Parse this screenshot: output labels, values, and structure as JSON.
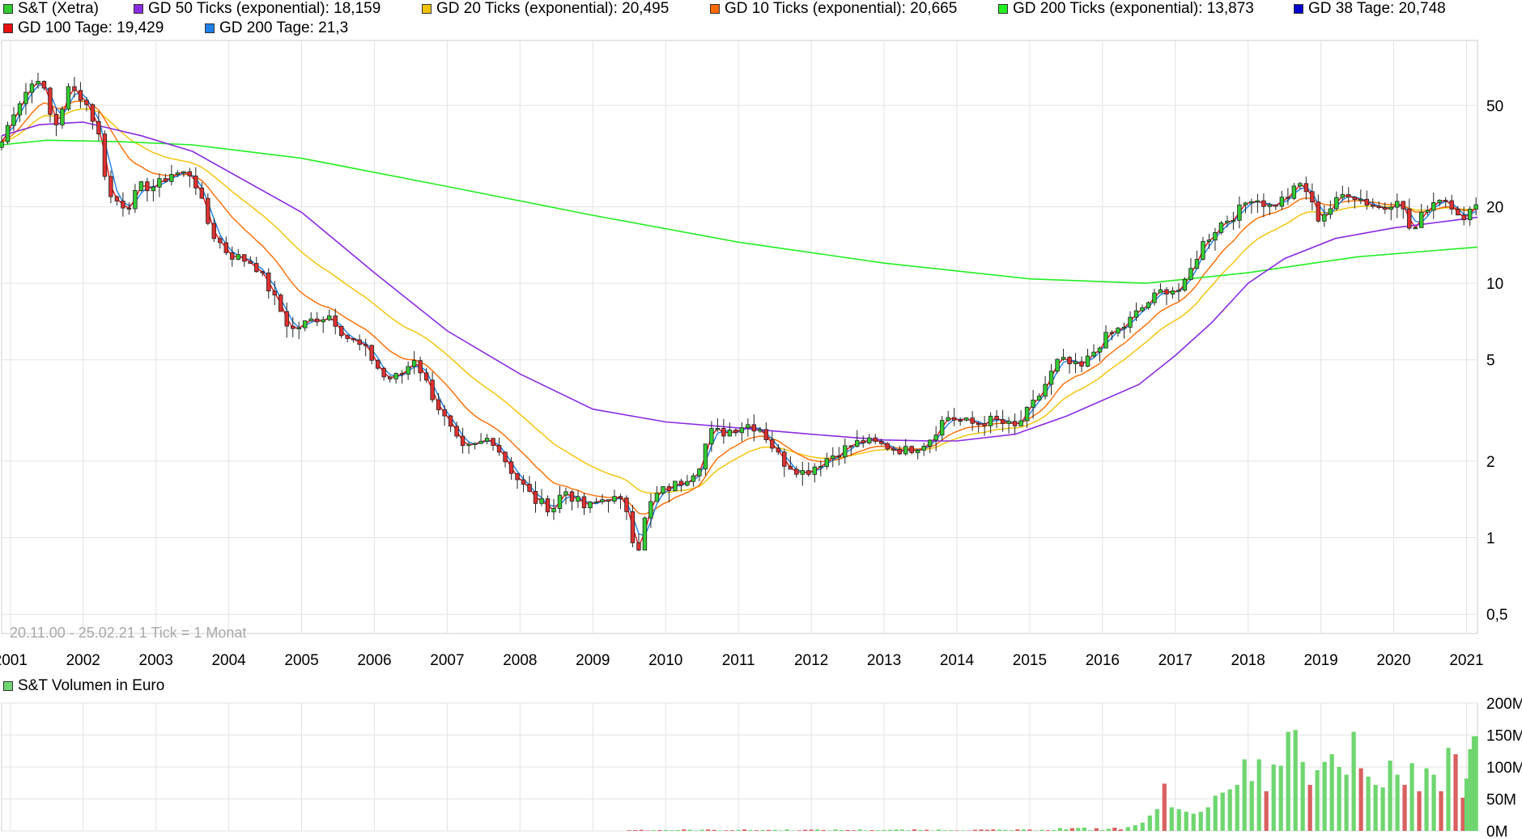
{
  "legend": [
    {
      "label": "S&T (Xetra)",
      "color": "#33cc33"
    },
    {
      "label": "GD 50 Ticks (exponential): 18,159",
      "color": "#8a2be2"
    },
    {
      "label": "GD 20 Ticks (exponential): 20,495",
      "color": "#f2c200"
    },
    {
      "label": "GD 10 Ticks (exponential): 20,665",
      "color": "#ff6a00"
    },
    {
      "label": "GD 200 Ticks (exponential): 13,873",
      "color": "#22ee22"
    },
    {
      "label": "GD 38 Tage: 20,748",
      "color": "#0000cc"
    },
    {
      "label": "GD 100 Tage: 19,429",
      "color": "#e81010"
    },
    {
      "label": "GD 200 Tage: 21,3",
      "color": "#1e7fe8"
    }
  ],
  "range_note": "20.11.00 - 25.02.21   1 Tick = 1 Monat",
  "volume_title": "S&T Volumen in Euro",
  "colors": {
    "up": "#33cc33",
    "down": "#e03030",
    "vol_up": "#6fd66f",
    "vol_down": "#d96060",
    "grid": "#e3e3e3"
  },
  "chart_data": [
    {
      "type": "candlestick",
      "title": "S&T (Xetra)",
      "interval": "monthly",
      "yscale": "log",
      "ylim": [
        0.42,
        90
      ],
      "y_ticks": [
        0.5,
        1,
        2,
        5,
        10,
        20,
        50
      ],
      "y_tick_labels": [
        "0,5",
        "1",
        "2",
        "5",
        "10",
        "20",
        "50"
      ],
      "x_range": [
        2000.88,
        2021.15
      ],
      "x_ticks": [
        2001,
        2002,
        2003,
        2004,
        2005,
        2006,
        2007,
        2008,
        2009,
        2010,
        2011,
        2012,
        2013,
        2014,
        2015,
        2016,
        2017,
        2018,
        2019,
        2020,
        2021
      ],
      "anchors_close": [
        [
          2000.88,
          36
        ],
        [
          2001.05,
          48
        ],
        [
          2001.2,
          56
        ],
        [
          2001.4,
          66
        ],
        [
          2001.6,
          40
        ],
        [
          2001.8,
          58
        ],
        [
          2002.0,
          54
        ],
        [
          2002.2,
          40
        ],
        [
          2002.35,
          22
        ],
        [
          2002.6,
          20
        ],
        [
          2002.8,
          24
        ],
        [
          2003.0,
          24
        ],
        [
          2003.2,
          27
        ],
        [
          2003.5,
          27
        ],
        [
          2003.75,
          16
        ],
        [
          2004.0,
          13
        ],
        [
          2004.35,
          12
        ],
        [
          2004.6,
          9
        ],
        [
          2004.85,
          6.5
        ],
        [
          2005.2,
          7.3
        ],
        [
          2005.4,
          7.5
        ],
        [
          2005.6,
          6.2
        ],
        [
          2005.9,
          5.4
        ],
        [
          2006.15,
          4.2
        ],
        [
          2006.35,
          4.3
        ],
        [
          2006.55,
          5.1
        ],
        [
          2006.8,
          3.6
        ],
        [
          2007.0,
          2.8
        ],
        [
          2007.2,
          2.2
        ],
        [
          2007.4,
          2.3
        ],
        [
          2007.6,
          2.5
        ],
        [
          2007.9,
          1.8
        ],
        [
          2008.2,
          1.4
        ],
        [
          2008.45,
          1.3
        ],
        [
          2008.6,
          1.55
        ],
        [
          2008.9,
          1.3
        ],
        [
          2009.2,
          1.45
        ],
        [
          2009.45,
          1.35
        ],
        [
          2009.6,
          0.85
        ],
        [
          2009.75,
          1.3
        ],
        [
          2009.9,
          1.5
        ],
        [
          2010.2,
          1.65
        ],
        [
          2010.45,
          1.9
        ],
        [
          2010.6,
          2.6
        ],
        [
          2010.8,
          2.6
        ],
        [
          2011.1,
          2.8
        ],
        [
          2011.3,
          2.7
        ],
        [
          2011.6,
          2.0
        ],
        [
          2011.9,
          1.8
        ],
        [
          2012.15,
          2.0
        ],
        [
          2012.4,
          2.2
        ],
        [
          2012.7,
          2.4
        ],
        [
          2013.0,
          2.3
        ],
        [
          2013.3,
          2.2
        ],
        [
          2013.6,
          2.4
        ],
        [
          2013.85,
          3.0
        ],
        [
          2014.2,
          2.8
        ],
        [
          2014.5,
          2.9
        ],
        [
          2014.8,
          2.7
        ],
        [
          2015.1,
          3.5
        ],
        [
          2015.4,
          5.0
        ],
        [
          2015.7,
          4.6
        ],
        [
          2016.0,
          6.0
        ],
        [
          2016.3,
          6.8
        ],
        [
          2016.6,
          8.3
        ],
        [
          2016.85,
          9.5
        ],
        [
          2017.1,
          9.4
        ],
        [
          2017.35,
          14
        ],
        [
          2017.6,
          17
        ],
        [
          2017.85,
          19
        ],
        [
          2018.05,
          22
        ],
        [
          2018.3,
          20
        ],
        [
          2018.55,
          22
        ],
        [
          2018.75,
          25
        ],
        [
          2018.95,
          18
        ],
        [
          2019.15,
          20
        ],
        [
          2019.35,
          23
        ],
        [
          2019.6,
          21
        ],
        [
          2019.85,
          19.5
        ],
        [
          2020.05,
          22
        ],
        [
          2020.25,
          15.5
        ],
        [
          2020.45,
          20
        ],
        [
          2020.65,
          22
        ],
        [
          2020.85,
          20
        ],
        [
          2020.98,
          17
        ],
        [
          2021.05,
          19
        ],
        [
          2021.15,
          22
        ]
      ],
      "series_lines": [
        {
          "name": "GD 200 Ticks (exponential)",
          "color": "#22ee22",
          "points": [
            [
              2000.88,
              35
            ],
            [
              2001.5,
              36.5
            ],
            [
              2002.5,
              36
            ],
            [
              2003.5,
              35
            ],
            [
              2005,
              31
            ],
            [
              2007,
              24
            ],
            [
              2009,
              18.5
            ],
            [
              2011,
              14.5
            ],
            [
              2013,
              12
            ],
            [
              2015,
              10.4
            ],
            [
              2016.6,
              10
            ],
            [
              2018,
              11
            ],
            [
              2019.5,
              12.7
            ],
            [
              2021.15,
              13.873
            ]
          ]
        },
        {
          "name": "GD 50 Ticks (exponential)",
          "color": "#8a2be2",
          "points": [
            [
              2000.88,
              38
            ],
            [
              2001.4,
              42
            ],
            [
              2002.0,
              43
            ],
            [
              2002.8,
              38
            ],
            [
              2003.5,
              33
            ],
            [
              2005,
              19
            ],
            [
              2006,
              11
            ],
            [
              2007,
              6.5
            ],
            [
              2008,
              4.4
            ],
            [
              2009,
              3.2
            ],
            [
              2010,
              2.85
            ],
            [
              2011,
              2.7
            ],
            [
              2012,
              2.55
            ],
            [
              2013,
              2.42
            ],
            [
              2013.6,
              2.4
            ],
            [
              2014,
              2.4
            ],
            [
              2014.8,
              2.55
            ],
            [
              2015.5,
              3.0
            ],
            [
              2016.5,
              4.0
            ],
            [
              2017.0,
              5.2
            ],
            [
              2017.5,
              7.0
            ],
            [
              2018,
              10
            ],
            [
              2018.5,
              12.5
            ],
            [
              2019.2,
              15
            ],
            [
              2020,
              16.5
            ],
            [
              2021.15,
              18.159
            ]
          ]
        }
      ]
    },
    {
      "type": "bar",
      "title": "S&T Volumen in Euro",
      "unit": "M EUR",
      "ylim": [
        0,
        200
      ],
      "y_ticks": [
        0,
        50,
        100,
        150,
        200
      ],
      "y_tick_labels": [
        "0M",
        "50M",
        "100M",
        "150M",
        "200M"
      ],
      "bars": [
        [
          2016.35,
          6
        ],
        [
          2016.45,
          9
        ],
        [
          2016.55,
          13
        ],
        [
          2016.65,
          24
        ],
        [
          2016.75,
          34
        ],
        [
          2016.85,
          74
        ],
        [
          2016.95,
          37
        ],
        [
          2017.05,
          34
        ],
        [
          2017.15,
          30
        ],
        [
          2017.25,
          27
        ],
        [
          2017.35,
          30
        ],
        [
          2017.45,
          37
        ],
        [
          2017.55,
          55
        ],
        [
          2017.65,
          60
        ],
        [
          2017.75,
          65
        ],
        [
          2017.85,
          72
        ],
        [
          2017.95,
          112
        ],
        [
          2018.05,
          78
        ],
        [
          2018.15,
          112
        ],
        [
          2018.25,
          62
        ],
        [
          2018.35,
          104
        ],
        [
          2018.45,
          102
        ],
        [
          2018.55,
          155
        ],
        [
          2018.65,
          158
        ],
        [
          2018.75,
          108
        ],
        [
          2018.85,
          72
        ],
        [
          2018.95,
          95
        ],
        [
          2019.05,
          108
        ],
        [
          2019.15,
          120
        ],
        [
          2019.25,
          100
        ],
        [
          2019.35,
          88
        ],
        [
          2019.45,
          155
        ],
        [
          2019.55,
          98
        ],
        [
          2019.65,
          85
        ],
        [
          2019.75,
          72
        ],
        [
          2019.85,
          68
        ],
        [
          2019.95,
          110
        ],
        [
          2020.05,
          88
        ],
        [
          2020.15,
          72
        ],
        [
          2020.25,
          106
        ],
        [
          2020.35,
          62
        ],
        [
          2020.45,
          98
        ],
        [
          2020.55,
          88
        ],
        [
          2020.65,
          62
        ],
        [
          2020.75,
          130
        ],
        [
          2020.85,
          120
        ],
        [
          2020.95,
          52
        ],
        [
          2021.0,
          82
        ],
        [
          2021.05,
          128
        ],
        [
          2021.1,
          148
        ],
        [
          2021.13,
          148
        ]
      ]
    }
  ]
}
